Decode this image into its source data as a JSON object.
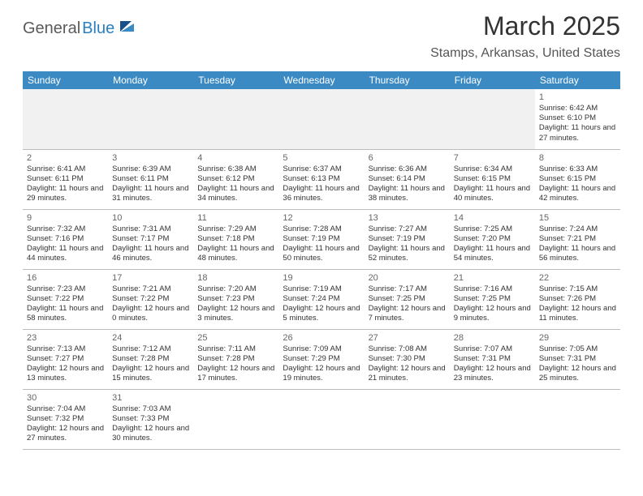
{
  "logo": {
    "text_dark": "General",
    "text_blue": "Blue"
  },
  "title": "March 2025",
  "location": "Stamps, Arkansas, United States",
  "colors": {
    "header_bg": "#3b8ac4",
    "header_text": "#ffffff",
    "row_divider": "#2a7fbf",
    "cell_border": "#bcbcbc",
    "empty_bg": "#f1f1f1",
    "body_text": "#333333",
    "logo_blue": "#2a7fbf",
    "logo_dark": "#5a5a5a"
  },
  "day_headers": [
    "Sunday",
    "Monday",
    "Tuesday",
    "Wednesday",
    "Thursday",
    "Friday",
    "Saturday"
  ],
  "weeks": [
    [
      null,
      null,
      null,
      null,
      null,
      null,
      {
        "n": "1",
        "sr": "6:42 AM",
        "ss": "6:10 PM",
        "dl": "11 hours and 27 minutes."
      }
    ],
    [
      {
        "n": "2",
        "sr": "6:41 AM",
        "ss": "6:11 PM",
        "dl": "11 hours and 29 minutes."
      },
      {
        "n": "3",
        "sr": "6:39 AM",
        "ss": "6:11 PM",
        "dl": "11 hours and 31 minutes."
      },
      {
        "n": "4",
        "sr": "6:38 AM",
        "ss": "6:12 PM",
        "dl": "11 hours and 34 minutes."
      },
      {
        "n": "5",
        "sr": "6:37 AM",
        "ss": "6:13 PM",
        "dl": "11 hours and 36 minutes."
      },
      {
        "n": "6",
        "sr": "6:36 AM",
        "ss": "6:14 PM",
        "dl": "11 hours and 38 minutes."
      },
      {
        "n": "7",
        "sr": "6:34 AM",
        "ss": "6:15 PM",
        "dl": "11 hours and 40 minutes."
      },
      {
        "n": "8",
        "sr": "6:33 AM",
        "ss": "6:15 PM",
        "dl": "11 hours and 42 minutes."
      }
    ],
    [
      {
        "n": "9",
        "sr": "7:32 AM",
        "ss": "7:16 PM",
        "dl": "11 hours and 44 minutes."
      },
      {
        "n": "10",
        "sr": "7:31 AM",
        "ss": "7:17 PM",
        "dl": "11 hours and 46 minutes."
      },
      {
        "n": "11",
        "sr": "7:29 AM",
        "ss": "7:18 PM",
        "dl": "11 hours and 48 minutes."
      },
      {
        "n": "12",
        "sr": "7:28 AM",
        "ss": "7:19 PM",
        "dl": "11 hours and 50 minutes."
      },
      {
        "n": "13",
        "sr": "7:27 AM",
        "ss": "7:19 PM",
        "dl": "11 hours and 52 minutes."
      },
      {
        "n": "14",
        "sr": "7:25 AM",
        "ss": "7:20 PM",
        "dl": "11 hours and 54 minutes."
      },
      {
        "n": "15",
        "sr": "7:24 AM",
        "ss": "7:21 PM",
        "dl": "11 hours and 56 minutes."
      }
    ],
    [
      {
        "n": "16",
        "sr": "7:23 AM",
        "ss": "7:22 PM",
        "dl": "11 hours and 58 minutes."
      },
      {
        "n": "17",
        "sr": "7:21 AM",
        "ss": "7:22 PM",
        "dl": "12 hours and 0 minutes."
      },
      {
        "n": "18",
        "sr": "7:20 AM",
        "ss": "7:23 PM",
        "dl": "12 hours and 3 minutes."
      },
      {
        "n": "19",
        "sr": "7:19 AM",
        "ss": "7:24 PM",
        "dl": "12 hours and 5 minutes."
      },
      {
        "n": "20",
        "sr": "7:17 AM",
        "ss": "7:25 PM",
        "dl": "12 hours and 7 minutes."
      },
      {
        "n": "21",
        "sr": "7:16 AM",
        "ss": "7:25 PM",
        "dl": "12 hours and 9 minutes."
      },
      {
        "n": "22",
        "sr": "7:15 AM",
        "ss": "7:26 PM",
        "dl": "12 hours and 11 minutes."
      }
    ],
    [
      {
        "n": "23",
        "sr": "7:13 AM",
        "ss": "7:27 PM",
        "dl": "12 hours and 13 minutes."
      },
      {
        "n": "24",
        "sr": "7:12 AM",
        "ss": "7:28 PM",
        "dl": "12 hours and 15 minutes."
      },
      {
        "n": "25",
        "sr": "7:11 AM",
        "ss": "7:28 PM",
        "dl": "12 hours and 17 minutes."
      },
      {
        "n": "26",
        "sr": "7:09 AM",
        "ss": "7:29 PM",
        "dl": "12 hours and 19 minutes."
      },
      {
        "n": "27",
        "sr": "7:08 AM",
        "ss": "7:30 PM",
        "dl": "12 hours and 21 minutes."
      },
      {
        "n": "28",
        "sr": "7:07 AM",
        "ss": "7:31 PM",
        "dl": "12 hours and 23 minutes."
      },
      {
        "n": "29",
        "sr": "7:05 AM",
        "ss": "7:31 PM",
        "dl": "12 hours and 25 minutes."
      }
    ],
    [
      {
        "n": "30",
        "sr": "7:04 AM",
        "ss": "7:32 PM",
        "dl": "12 hours and 27 minutes."
      },
      {
        "n": "31",
        "sr": "7:03 AM",
        "ss": "7:33 PM",
        "dl": "12 hours and 30 minutes."
      },
      null,
      null,
      null,
      null,
      null
    ]
  ],
  "labels": {
    "sunrise_prefix": "Sunrise: ",
    "sunset_prefix": "Sunset: ",
    "daylight_prefix": "Daylight: "
  }
}
